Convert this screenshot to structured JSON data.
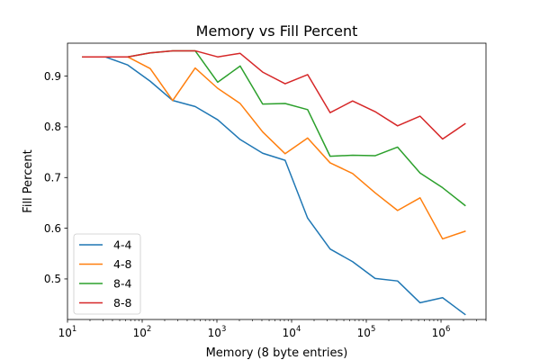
{
  "chart_data": {
    "type": "line",
    "title": "Memory vs Fill Percent",
    "xlabel": "Memory (8 byte entries)",
    "ylabel": "Fill Percent",
    "xscale": "log",
    "xlim": [
      10,
      4000000
    ],
    "ylim": [
      0.42,
      0.965
    ],
    "x_ticks": [
      {
        "value": 10,
        "base": "10",
        "exp": "1"
      },
      {
        "value": 100,
        "base": "10",
        "exp": "2"
      },
      {
        "value": 1000,
        "base": "10",
        "exp": "3"
      },
      {
        "value": 10000,
        "base": "10",
        "exp": "4"
      },
      {
        "value": 100000,
        "base": "10",
        "exp": "5"
      },
      {
        "value": 1000000,
        "base": "10",
        "exp": "6"
      }
    ],
    "y_ticks": [
      {
        "value": 0.5,
        "label": "0.5"
      },
      {
        "value": 0.6,
        "label": "0.6"
      },
      {
        "value": 0.7,
        "label": "0.7"
      },
      {
        "value": 0.8,
        "label": "0.8"
      },
      {
        "value": 0.9,
        "label": "0.9"
      }
    ],
    "x": [
      16,
      32,
      64,
      128,
      256,
      512,
      1024,
      2048,
      4096,
      8192,
      16384,
      32768,
      65536,
      131072,
      262144,
      524288,
      1048576,
      2097152
    ],
    "series": [
      {
        "name": "4-4",
        "color": "#1f77b4",
        "values": [
          0.938,
          0.938,
          0.922,
          0.89,
          0.852,
          0.84,
          0.814,
          0.775,
          0.748,
          0.734,
          0.62,
          0.559,
          0.534,
          0.501,
          0.496,
          0.453,
          0.463,
          0.43
        ]
      },
      {
        "name": "4-8",
        "color": "#ff7f0e",
        "values": [
          0.938,
          0.938,
          0.938,
          0.915,
          0.852,
          0.916,
          0.876,
          0.846,
          0.79,
          0.747,
          0.778,
          0.729,
          0.708,
          0.67,
          0.635,
          0.66,
          0.579,
          0.594
        ]
      },
      {
        "name": "8-4",
        "color": "#2ca02c",
        "values": [
          0.938,
          0.938,
          0.938,
          0.946,
          0.95,
          0.95,
          0.888,
          0.92,
          0.845,
          0.846,
          0.834,
          0.742,
          0.744,
          0.743,
          0.76,
          0.709,
          0.68,
          0.645
        ]
      },
      {
        "name": "8-8",
        "color": "#d62728",
        "values": [
          0.938,
          0.938,
          0.938,
          0.946,
          0.95,
          0.95,
          0.938,
          0.945,
          0.908,
          0.885,
          0.903,
          0.828,
          0.851,
          0.83,
          0.802,
          0.821,
          0.776,
          0.806
        ]
      }
    ],
    "grid": false,
    "legend_position": "lower-left"
  }
}
